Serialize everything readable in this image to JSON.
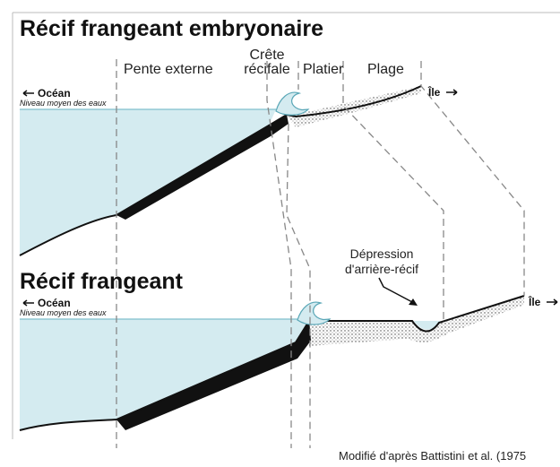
{
  "panels": [
    {
      "title": "Récif frangeant embryonaire",
      "ocean": "Océan",
      "sea_level": "Niveau moyen des eaux",
      "island": "Île"
    },
    {
      "title": "Récif frangeant",
      "ocean": "Océan",
      "sea_level": "Niveau moyen des eaux",
      "island": "Île"
    }
  ],
  "zones": {
    "outer_slope": "Pente externe",
    "crest": [
      "Crête",
      "récifale"
    ],
    "flat": "Platier",
    "beach": "Plage"
  },
  "depression": [
    "Dépression",
    "d'arrière-récif"
  ],
  "credit": "Modifié d'après Battistini et al. (1975"
}
